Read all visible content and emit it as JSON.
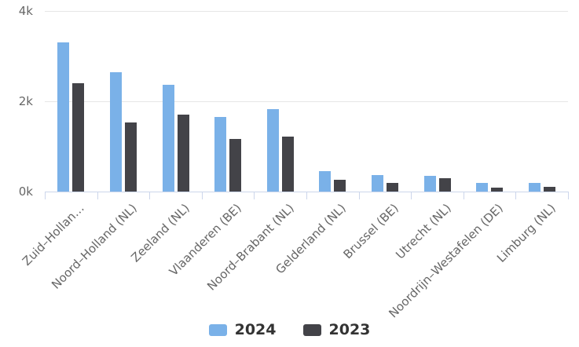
{
  "chart_data": {
    "type": "bar",
    "title": "",
    "xlabel": "",
    "ylabel": "",
    "ylim": [
      0,
      4000
    ],
    "yticks": [
      {
        "value": 0,
        "label": "0k"
      },
      {
        "value": 2000,
        "label": "2k"
      },
      {
        "value": 4000,
        "label": "4k"
      }
    ],
    "categories": [
      "Zuid–Hollan…",
      "Noord–Holland (NL)",
      "Zeeland (NL)",
      "Vlaanderen (BE)",
      "Noord–Brabant (NL)",
      "Gelderland (NL)",
      "Brussel (BE)",
      "Utrecht (NL)",
      "Noordrijn–Westafelen (DE)",
      "Limburg (NL)"
    ],
    "series": [
      {
        "name": "2024",
        "color": "#7ab1e8",
        "values": [
          3300,
          2650,
          2370,
          1650,
          1820,
          460,
          370,
          350,
          200,
          190
        ]
      },
      {
        "name": "2023",
        "color": "#434348",
        "values": [
          2400,
          1530,
          1700,
          1170,
          1220,
          270,
          200,
          290,
          90,
          110
        ]
      }
    ],
    "legend_position": "bottom-center",
    "grid": true,
    "x_label_rotation": -45
  },
  "styles": {
    "background": "#ffffff",
    "grid_color": "#e6e6e6",
    "axis_line_color": "#ccd6eb",
    "tick_label_color": "#666666",
    "legend_text_color": "#333333"
  }
}
